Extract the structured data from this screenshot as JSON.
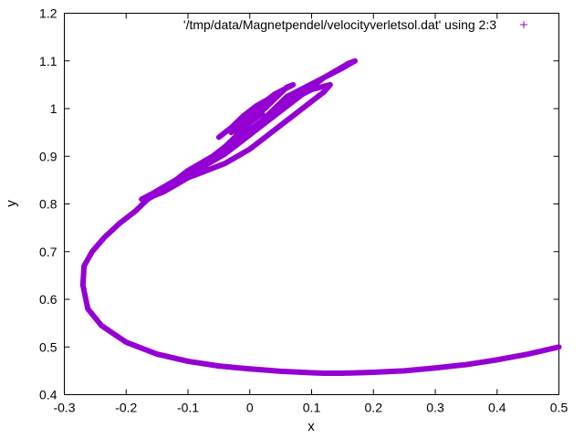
{
  "chart_data": {
    "type": "scatter",
    "title": "",
    "xlabel": "x",
    "ylabel": "y",
    "xlim": [
      -0.3,
      0.5
    ],
    "ylim": [
      0.4,
      1.2
    ],
    "x_ticks": [
      "-0.3",
      "-0.2",
      "-0.1",
      "0",
      "0.1",
      "0.2",
      "0.3",
      "0.4",
      "0.5"
    ],
    "y_ticks": [
      "0.4",
      "0.5",
      "0.6",
      "0.7",
      "0.8",
      "0.9",
      "1",
      "1.1",
      "1.2"
    ],
    "legend": {
      "placement": "top-right",
      "marker": "+"
    },
    "grid": false,
    "series": [
      {
        "name": "'/tmp/data/Magnetpendel/velocityverletsol.dat' using 2:3",
        "color": "#9400d3",
        "marker": "plus",
        "x": [
          0.5,
          0.45,
          0.4,
          0.35,
          0.3,
          0.25,
          0.2,
          0.15,
          0.12,
          0.1,
          0.05,
          0.0,
          -0.05,
          -0.1,
          -0.15,
          -0.2,
          -0.24,
          -0.262,
          -0.27,
          -0.268,
          -0.255,
          -0.235,
          -0.21,
          -0.185,
          -0.165,
          -0.145,
          -0.12,
          -0.1,
          -0.08,
          -0.06,
          -0.04,
          -0.02,
          0.0,
          0.02,
          0.04,
          0.06,
          0.08,
          0.1,
          0.12,
          0.14,
          0.16,
          0.17,
          0.15,
          0.12,
          0.09,
          0.06,
          0.04,
          0.02,
          0.0,
          -0.02,
          -0.04,
          -0.06,
          -0.08,
          -0.1,
          -0.12,
          -0.14,
          -0.16,
          -0.175,
          -0.16,
          -0.14,
          -0.12,
          -0.1,
          -0.08,
          -0.06,
          -0.04,
          -0.02,
          0.0,
          0.02,
          0.04,
          0.06,
          0.08,
          0.1,
          0.12,
          0.13,
          0.1,
          0.07,
          0.05,
          0.03,
          0.01,
          -0.01,
          -0.03,
          -0.05,
          -0.07,
          -0.06,
          -0.04,
          -0.02,
          0.0,
          0.02,
          0.04,
          0.06,
          0.07,
          0.04,
          0.02,
          0.0,
          -0.02,
          -0.04,
          -0.05,
          -0.03,
          -0.01,
          0.01,
          0.03,
          0.05,
          0.03,
          0.01,
          -0.01,
          -0.03,
          0.0,
          0.02
        ],
        "y": [
          0.5,
          0.485,
          0.473,
          0.463,
          0.456,
          0.45,
          0.447,
          0.445,
          0.445,
          0.446,
          0.449,
          0.454,
          0.46,
          0.47,
          0.485,
          0.51,
          0.545,
          0.58,
          0.63,
          0.67,
          0.7,
          0.73,
          0.76,
          0.785,
          0.81,
          0.825,
          0.845,
          0.86,
          0.875,
          0.89,
          0.905,
          0.925,
          0.945,
          0.965,
          0.985,
          1.005,
          1.025,
          1.045,
          1.065,
          1.08,
          1.095,
          1.1,
          1.085,
          1.065,
          1.045,
          1.025,
          1.0,
          0.975,
          0.955,
          0.935,
          0.915,
          0.9,
          0.885,
          0.87,
          0.85,
          0.835,
          0.82,
          0.81,
          0.815,
          0.825,
          0.84,
          0.855,
          0.865,
          0.875,
          0.885,
          0.9,
          0.915,
          0.935,
          0.955,
          0.975,
          0.995,
          1.015,
          1.035,
          1.05,
          1.04,
          1.02,
          1.0,
          0.98,
          0.96,
          0.94,
          0.92,
          0.905,
          0.89,
          0.9,
          0.92,
          0.945,
          0.97,
          0.995,
          1.02,
          1.045,
          1.05,
          1.03,
          1.01,
          0.99,
          0.97,
          0.95,
          0.94,
          0.96,
          0.985,
          1.005,
          1.02,
          1.035,
          1.01,
          0.99,
          0.97,
          0.95,
          0.97,
          0.99
        ]
      }
    ]
  }
}
